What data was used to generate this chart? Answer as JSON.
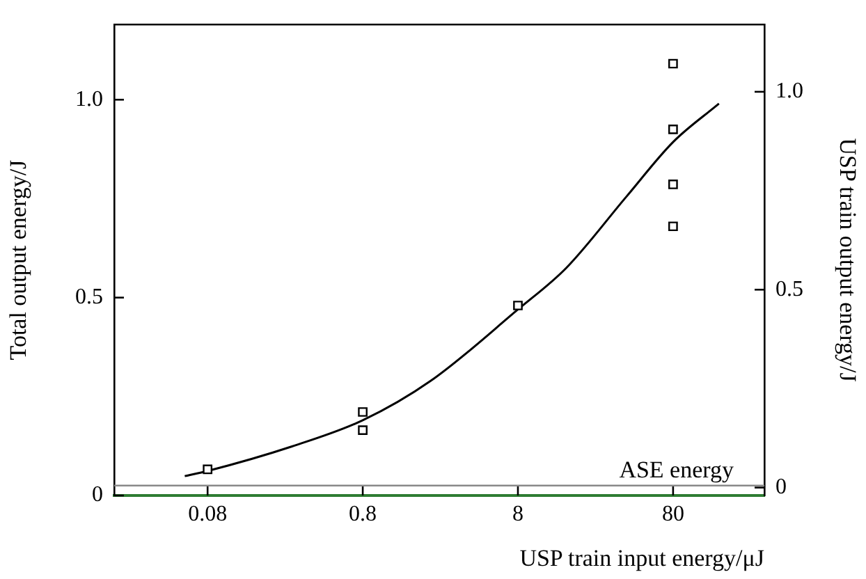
{
  "chart_data": {
    "type": "scatter",
    "xlabel": "USP train input energy/μJ",
    "ylabel": "Total output energy/J",
    "y2label": "USP train output energy/J",
    "log": "x",
    "xlim": [
      0.02,
      310
    ],
    "xticks": [
      0.08,
      0.8,
      8,
      80
    ],
    "ylim": [
      0,
      1.19
    ],
    "yticks": [
      0,
      0.5,
      {
        "value": 1,
        "label": "1.0"
      }
    ],
    "y2lim": [
      -0.02,
      1.17
    ],
    "y2ticks": [
      0,
      0.5,
      {
        "value": 1,
        "label": "1.0"
      }
    ],
    "grid": false,
    "legend": false,
    "marker": "square",
    "series": [
      {
        "color": "#000000",
        "x": [
          0.08,
          0.8,
          0.8,
          8,
          80,
          80,
          80,
          80
        ],
        "values": [
          0.066,
          0.211,
          0.165,
          0.48,
          1.091,
          0.925,
          0.786,
          0.68
        ]
      },
      {
        "type": "line",
        "color": "#000000",
        "marker": "none",
        "x": [
          0.057,
          0.08,
          0.28,
          0.8,
          2.2,
          8,
          16.4,
          40,
          80,
          158
        ],
        "values": [
          0.049,
          0.062,
          0.124,
          0.19,
          0.29,
          0.47,
          0.575,
          0.755,
          0.893,
          0.99
        ]
      }
    ],
    "ref_lines": [
      {
        "axis": "y",
        "value": 0.025,
        "label": "ASE energy",
        "color": "#888888"
      }
    ]
  }
}
